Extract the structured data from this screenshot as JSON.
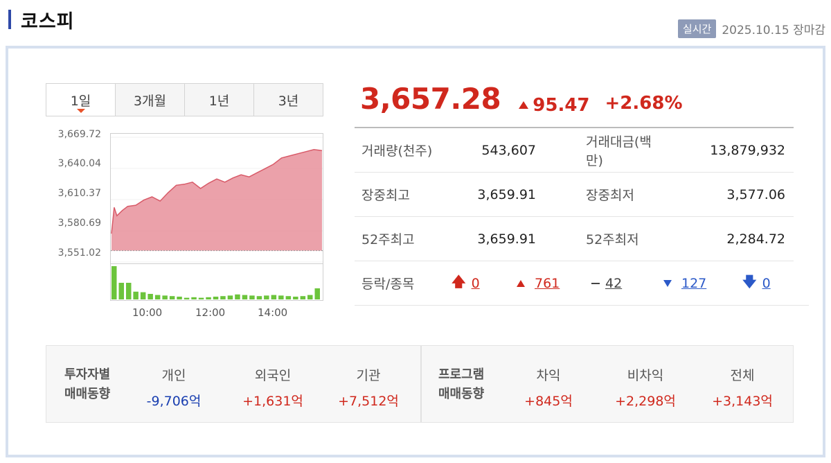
{
  "header": {
    "title": "코스피",
    "badge": "실시간",
    "status": "2025.10.15 장마감"
  },
  "tabs": [
    {
      "label": "1일",
      "active": true
    },
    {
      "label": "3개월",
      "active": false
    },
    {
      "label": "1년",
      "active": false
    },
    {
      "label": "3년",
      "active": false
    }
  ],
  "chart_data": {
    "type": "area",
    "y_ticks": [
      "3,669.72",
      "3,640.04",
      "3,610.37",
      "3,580.69",
      "3,551.02"
    ],
    "x_ticks": [
      "10:00",
      "12:00",
      "14:00"
    ],
    "ylim": [
      3551.02,
      3669.72
    ],
    "baseline": 3561.81,
    "series": [
      {
        "x": [
          "09:00",
          "09:05",
          "09:10",
          "09:20",
          "09:30",
          "09:45",
          "10:00",
          "10:15",
          "10:30",
          "10:45",
          "11:00",
          "11:15",
          "11:30",
          "11:45",
          "12:00",
          "12:15",
          "12:30",
          "12:45",
          "13:00",
          "13:15",
          "13:30",
          "13:45",
          "14:00",
          "14:15",
          "14:30",
          "14:45",
          "15:00",
          "15:15",
          "15:30"
        ],
        "values": [
          3578,
          3603,
          3595,
          3600,
          3604,
          3605,
          3610,
          3613,
          3609,
          3617,
          3624,
          3625,
          3627,
          3621,
          3626,
          3630,
          3627,
          3631,
          3634,
          3632,
          3636,
          3640,
          3644,
          3650,
          3652,
          3654,
          3656,
          3658,
          3657
        ]
      }
    ],
    "volume": [
      60,
      30,
      30,
      14,
      13,
      10,
      8,
      7,
      6,
      5,
      3,
      4,
      3,
      4,
      5,
      6,
      7,
      9,
      8,
      7,
      6,
      7,
      8,
      7,
      6,
      5,
      6,
      8,
      20
    ]
  },
  "quote": {
    "price": "3,657.28",
    "change": "95.47",
    "rate": "+2.68%"
  },
  "stats": [
    {
      "label1": "거래량(천주)",
      "value1": "543,607",
      "label2": "거래대금(백만)",
      "value2": "13,879,932"
    },
    {
      "label1": "장중최고",
      "value1": "3,659.91",
      "label2": "장중최저",
      "value2": "3,577.06"
    },
    {
      "label1": "52주최고",
      "value1": "3,659.91",
      "label2": "52주최저",
      "value2": "2,284.72"
    }
  ],
  "updown": {
    "label": "등락/종목",
    "upper_limit": "0",
    "up": "761",
    "flat": "42",
    "down": "127",
    "lower_limit": "0"
  },
  "investors": {
    "head_line1": "투자자별",
    "head_line2": "매매동향",
    "items": [
      {
        "label": "개인",
        "value": "-9,706억"
      },
      {
        "label": "외국인",
        "value": "+1,631억"
      },
      {
        "label": "기관",
        "value": "+7,512억"
      }
    ]
  },
  "program": {
    "head_line1": "프로그램",
    "head_line2": "매매동향",
    "items": [
      {
        "label": "차익",
        "value": "+845억"
      },
      {
        "label": "비차익",
        "value": "+2,298억"
      },
      {
        "label": "전체",
        "value": "+3,143억"
      }
    ]
  },
  "colors": {
    "up": "#d0281d",
    "down": "#2b59c8",
    "area": "#e8919b",
    "volume": "#6cc43c",
    "accent": "#2f4aa8"
  }
}
